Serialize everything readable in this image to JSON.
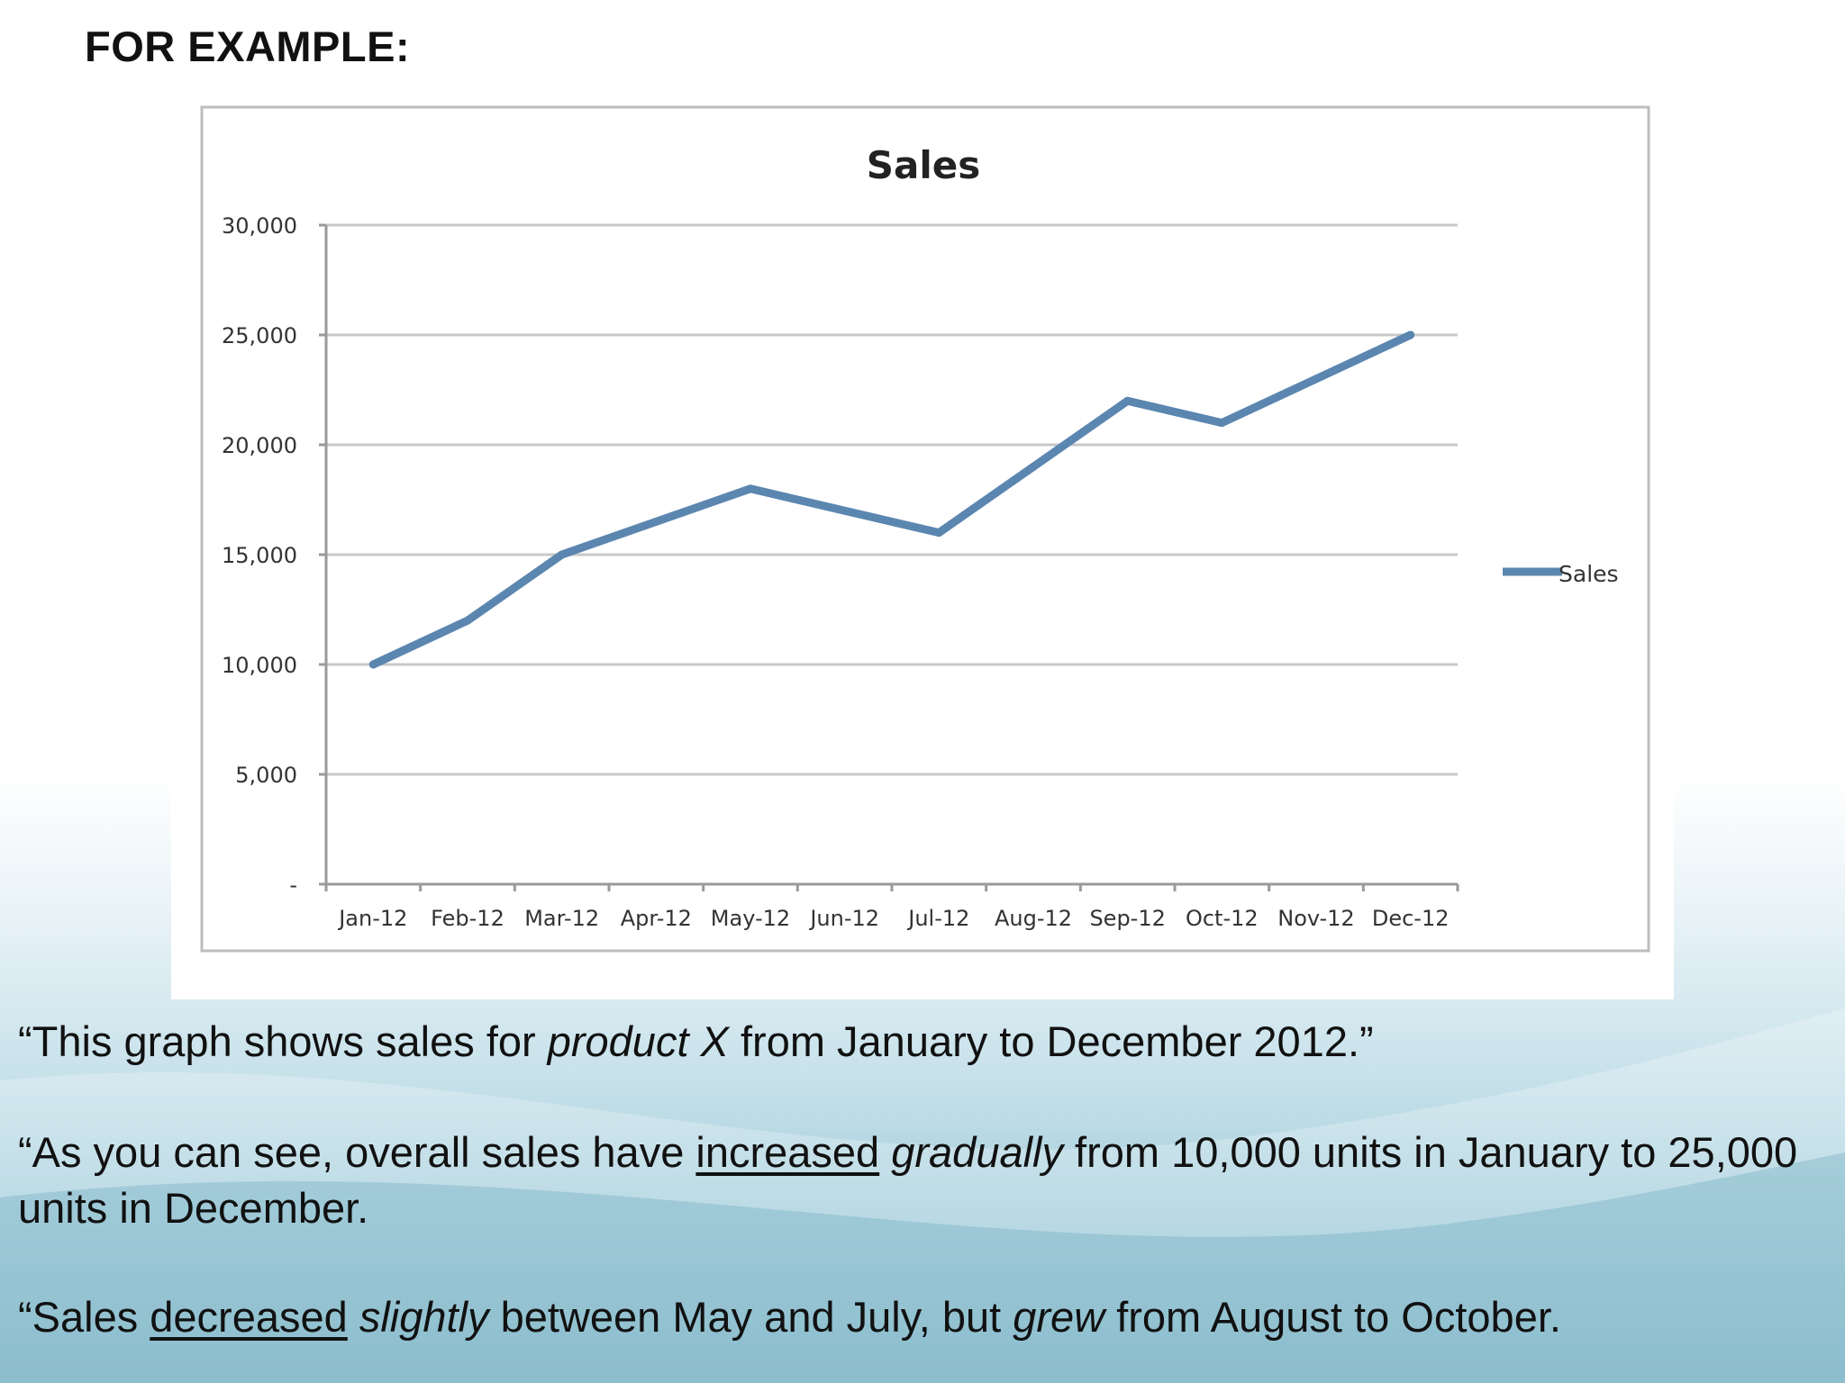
{
  "slide": {
    "heading": "FOR EXAMPLE:",
    "paragraphs": [
      [
        "“This graph shows sales for ",
        {
          "i": "product X"
        },
        " from January to December 2012.”"
      ],
      [
        "“As you can see, overall sales have ",
        {
          "u": "increased"
        },
        " ",
        {
          "i": "gradually"
        },
        " from 10,000 units in January to 25,000 units in December."
      ],
      [
        "“Sales ",
        {
          "u": "decreased"
        },
        " ",
        {
          "i": "slightly"
        },
        " between May and July, but ",
        {
          "i": "grew"
        },
        " from August to October."
      ]
    ]
  },
  "chart_data": {
    "type": "line",
    "title": "Sales",
    "xlabel": "",
    "ylabel": "",
    "categories": [
      "Jan-12",
      "Feb-12",
      "Mar-12",
      "Apr-12",
      "May-12",
      "Jun-12",
      "Jul-12",
      "Aug-12",
      "Sep-12",
      "Oct-12",
      "Nov-12",
      "Dec-12"
    ],
    "series": [
      {
        "name": "Sales",
        "values": [
          10000,
          12000,
          15000,
          16500,
          18000,
          17000,
          16000,
          19000,
          22000,
          21000,
          23000,
          25000
        ],
        "color": "#5b86b0"
      }
    ],
    "ylim": [
      0,
      30000
    ],
    "y_ticks": [
      0,
      5000,
      10000,
      15000,
      20000,
      25000,
      30000
    ],
    "y_tick_labels": [
      "-",
      "5,000",
      "10,000",
      "15,000",
      "20,000",
      "25,000",
      "30,000"
    ],
    "grid": true,
    "legend": "right"
  },
  "colors": {
    "line": "#5b86b0",
    "gridline": "#c8c8c8",
    "frame": "#bdbdbd",
    "background_wave": "#7fb7c9"
  }
}
